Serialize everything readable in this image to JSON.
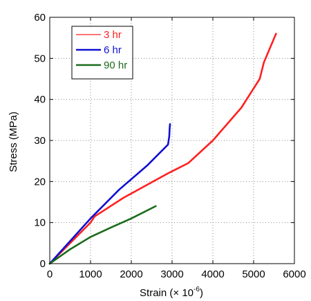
{
  "chart_data": {
    "type": "line",
    "title": "",
    "xlabel": "Strain (",
    "xlabel_unit": "× 10",
    "xlabel_exponent": "-6",
    "xlabel_close": ")",
    "ylabel": "Stress (MPa)",
    "xlim": [
      0,
      6000
    ],
    "ylim": [
      0,
      60
    ],
    "x_ticks": [
      0,
      1000,
      2000,
      3000,
      4000,
      5000,
      6000
    ],
    "y_ticks": [
      0,
      10,
      20,
      30,
      40,
      50,
      60
    ],
    "x_tick_labels": [
      "0",
      "1000",
      "2000",
      "3000",
      "4000",
      "5000",
      "6000"
    ],
    "y_tick_labels": [
      "0",
      "10",
      "20",
      "30",
      "40",
      "50",
      "60"
    ],
    "grid": "dotted",
    "legend_position": "top-left",
    "series": [
      {
        "name": "3 hr",
        "color": "#ff2020",
        "x": [
          0,
          500,
          1000,
          1100,
          1800,
          2900,
          3400,
          4000,
          4700,
          5150,
          5250,
          5550
        ],
        "y": [
          0,
          5,
          10,
          11.5,
          16,
          22,
          24.5,
          30,
          38,
          45,
          49,
          56
        ]
      },
      {
        "name": "6 hr",
        "color": "#1010d0",
        "x": [
          0,
          500,
          1000,
          1700,
          2400,
          2900,
          2930,
          2940,
          2950
        ],
        "y": [
          0,
          5.5,
          11,
          18,
          24,
          29,
          31,
          33,
          34
        ]
      },
      {
        "name": "90 hr",
        "color": "#1a6b1a",
        "x": [
          0,
          500,
          1000,
          1500,
          2000,
          2600
        ],
        "y": [
          0,
          3.5,
          6.5,
          8.8,
          11,
          14
        ]
      }
    ]
  }
}
